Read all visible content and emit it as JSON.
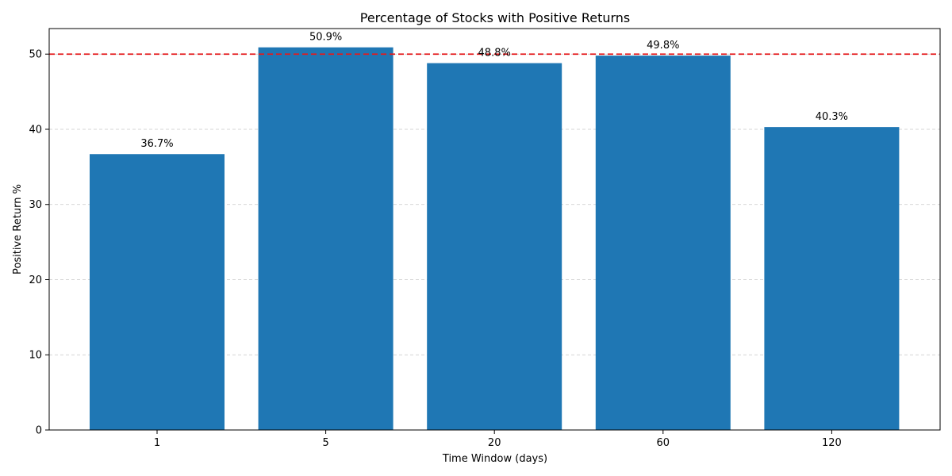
{
  "chart_data": {
    "type": "bar",
    "title": "Percentage of Stocks with Positive Returns",
    "xlabel": "Time Window (days)",
    "ylabel": "Positive Return %",
    "categories": [
      "1",
      "5",
      "20",
      "60",
      "120"
    ],
    "values": [
      36.7,
      50.9,
      48.8,
      49.8,
      40.3
    ],
    "data_labels": [
      "36.7%",
      "50.9%",
      "48.8%",
      "49.8%",
      "40.3%"
    ],
    "ylim": [
      0,
      53.4
    ],
    "yticks": [
      0,
      10,
      20,
      30,
      40,
      50
    ],
    "reference_line": {
      "y": 50,
      "color": "#e41a1c",
      "style": "dashed"
    },
    "grid": {
      "y": true,
      "x": false,
      "style": "dashed"
    },
    "colors": {
      "bar": "#1f77b4",
      "grid": "#c8c8c8",
      "axis": "#000000"
    }
  }
}
